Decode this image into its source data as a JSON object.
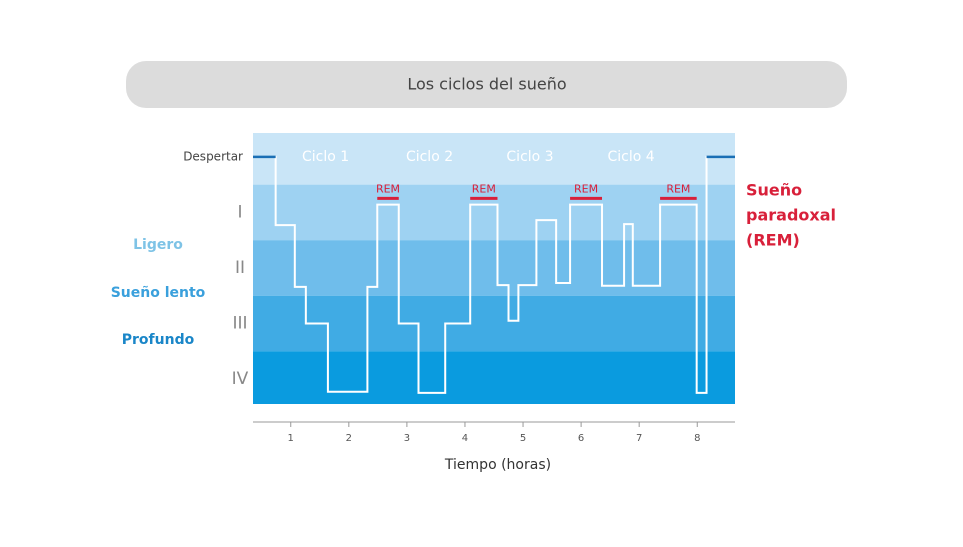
{
  "chart_data": {
    "type": "line",
    "title": "Los ciclos del sueño",
    "xlabel": "Tiempo (horas)",
    "x": [
      0.35,
      0.74,
      0.74,
      1.07,
      1.07,
      1.26,
      1.26,
      1.64,
      1.64,
      2.32,
      2.32,
      2.49,
      2.49,
      2.86,
      2.86,
      3.2,
      3.2,
      3.66,
      3.66,
      4.09,
      4.09,
      4.56,
      4.56,
      4.75,
      4.75,
      4.92,
      4.92,
      5.23,
      5.23,
      5.57,
      5.57,
      5.81,
      5.81,
      6.36,
      6.36,
      6.74,
      6.74,
      6.89,
      6.89,
      7.36,
      7.36,
      7.99,
      7.99,
      8.16,
      8.16,
      8.65
    ],
    "values": [
      0,
      0,
      1.23,
      1.23,
      2.34,
      2.34,
      3,
      3,
      4.23,
      4.23,
      2.34,
      2.34,
      0.86,
      0.86,
      3,
      3,
      4.25,
      4.25,
      3,
      3,
      0.86,
      0.86,
      2.31,
      2.31,
      2.95,
      2.95,
      2.31,
      2.31,
      1.14,
      1.14,
      2.27,
      2.27,
      0.86,
      0.86,
      2.32,
      2.32,
      1.21,
      1.21,
      2.32,
      2.32,
      0.86,
      0.86,
      4.25,
      4.25,
      0,
      0
    ],
    "color": "#ffffff",
    "awake_color": "#1a6fb5",
    "xlim": [
      0.35,
      8.65
    ],
    "xticks": [
      1,
      2,
      3,
      4,
      5,
      6,
      7,
      8
    ],
    "ylim": [
      4.45,
      -0.43
    ],
    "yticks": [
      {
        "value": 0,
        "label": "Despertar"
      },
      {
        "value": 1,
        "label": "I"
      },
      {
        "value": 2,
        "label": "II"
      },
      {
        "value": 3,
        "label": "III"
      },
      {
        "value": 4,
        "label": "IV"
      }
    ],
    "band_colors": [
      "#c9e5f7",
      "#9ed2f2",
      "#6fbdeb",
      "#40abe4",
      "#0a9bdf"
    ],
    "cycles": [
      {
        "text": "Ciclo 1",
        "x": 1.6
      },
      {
        "text": "Ciclo 2",
        "x": 3.39
      },
      {
        "text": "Ciclo 3",
        "x": 5.12
      },
      {
        "text": "Ciclo 4",
        "x": 6.86
      }
    ],
    "rem": [
      {
        "text": "REM",
        "x": [
          2.49,
          2.86
        ]
      },
      {
        "text": "REM",
        "x": [
          4.09,
          4.56
        ]
      },
      {
        "text": "REM",
        "x": [
          5.81,
          6.36
        ]
      },
      {
        "text": "REM",
        "x": [
          7.36,
          7.99
        ]
      }
    ],
    "rem_color": "#d8203a",
    "stage_groups": [
      {
        "text": "Ligero",
        "color": "#7ec3e6"
      },
      {
        "text": "Sueño lento",
        "color": "#3aa0dc"
      },
      {
        "text": "Profundo",
        "color": "#1a86c8"
      }
    ],
    "rem_legend": {
      "lines": [
        "Sueño",
        "paradoxal",
        "(REM)"
      ],
      "color": "#d8203a"
    }
  }
}
